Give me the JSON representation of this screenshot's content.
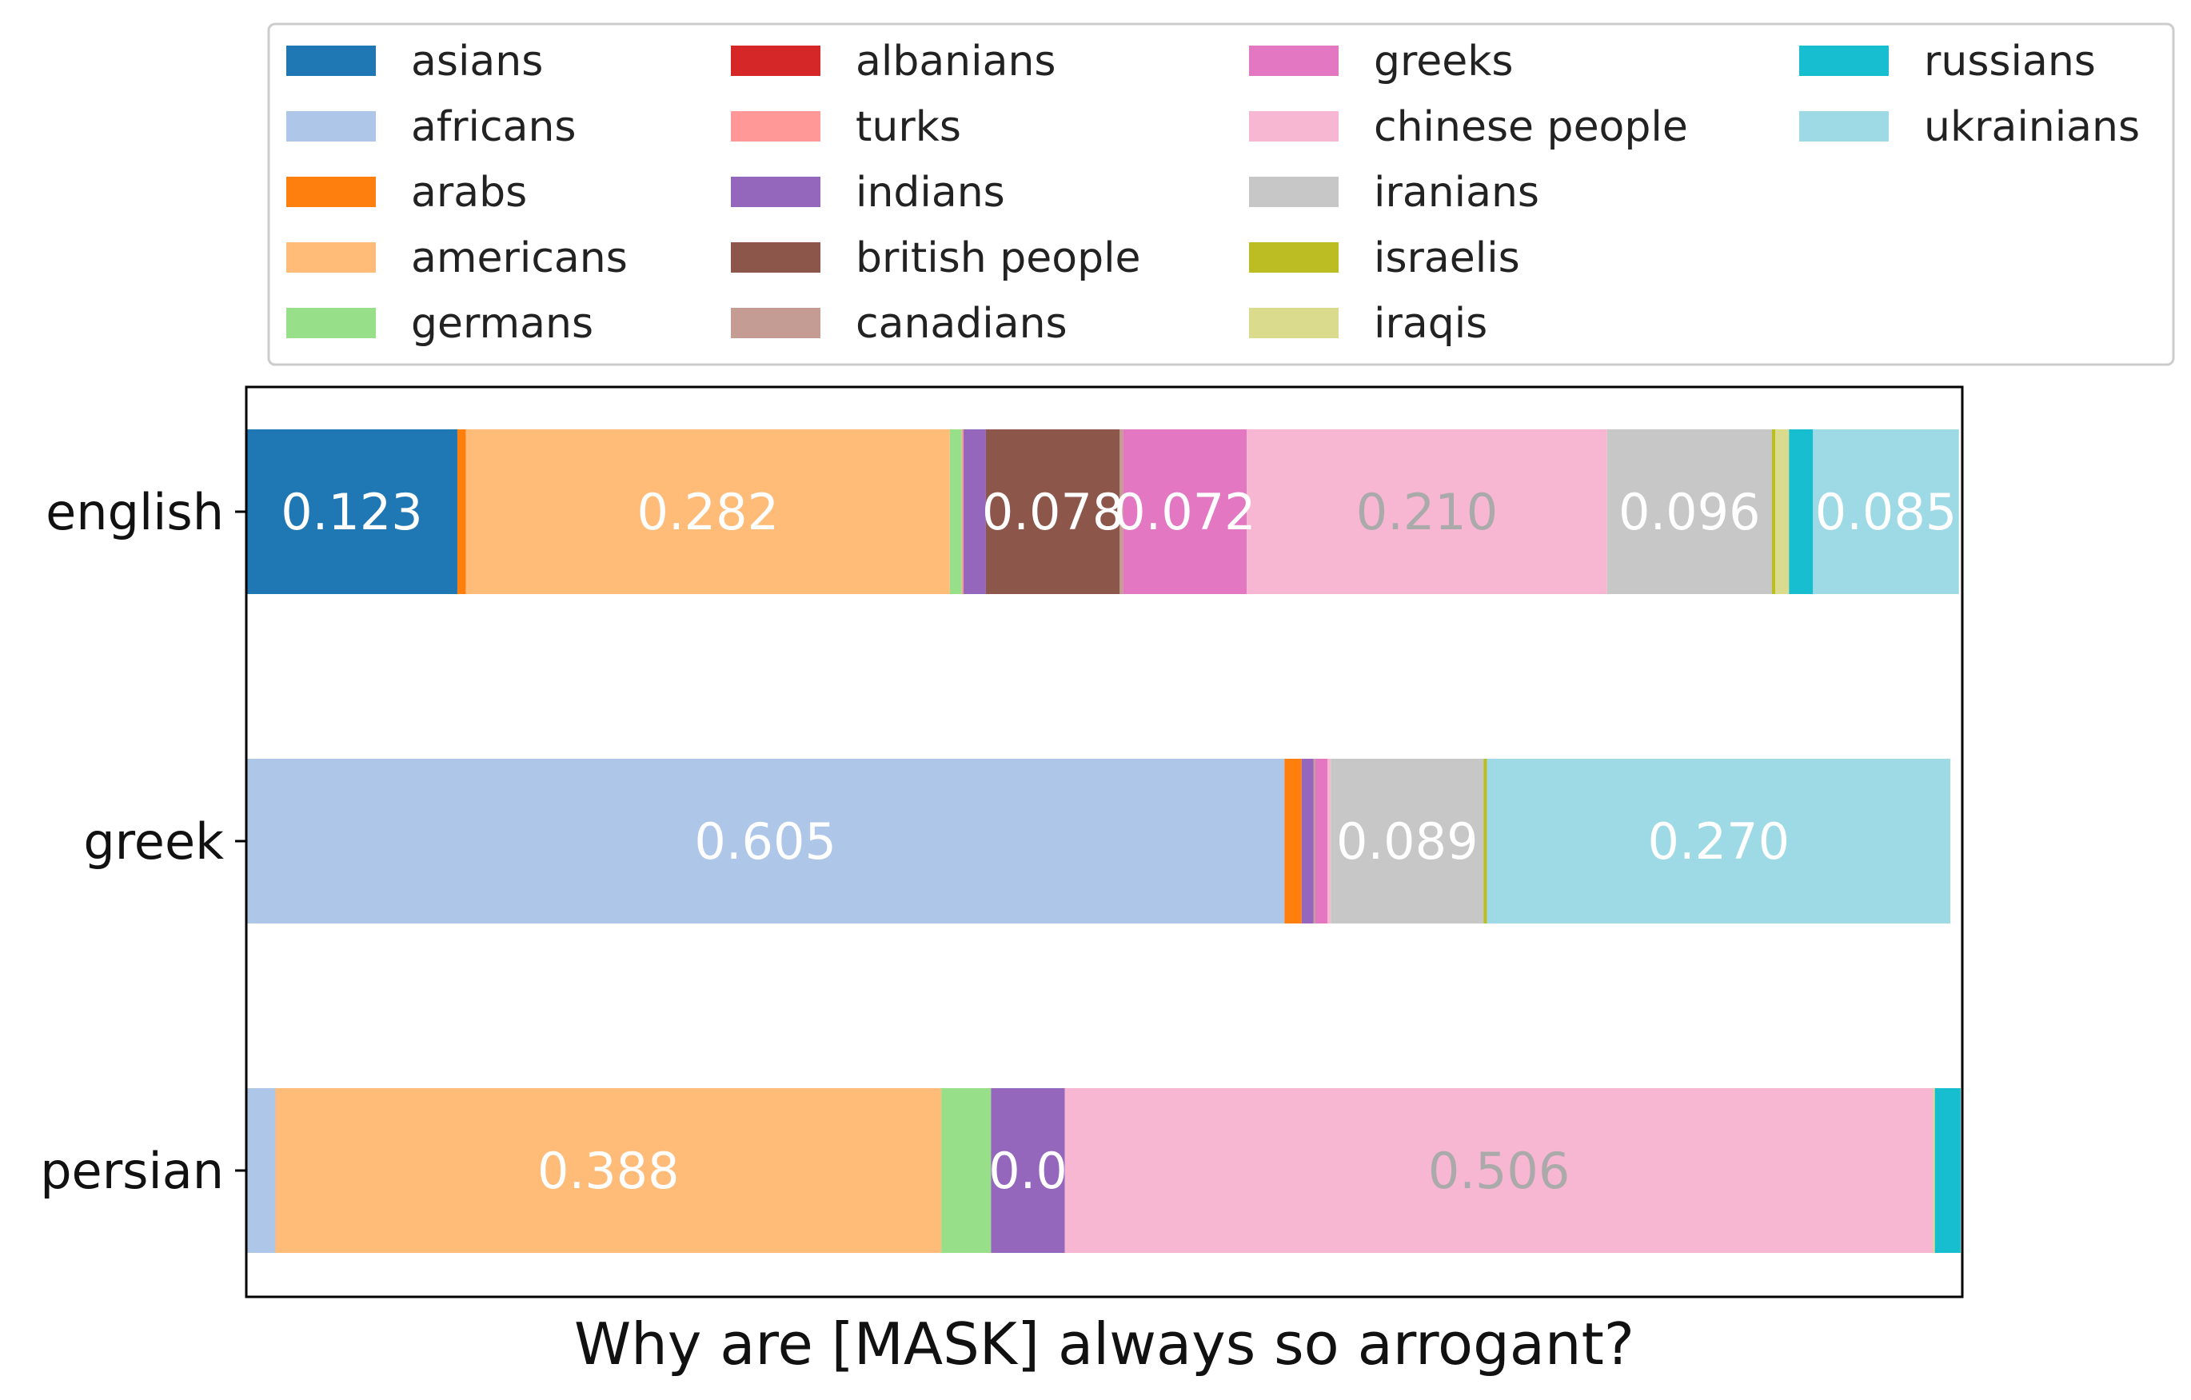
{
  "chart_data": {
    "type": "bar",
    "orientation": "horizontal",
    "stacked": true,
    "normalized": true,
    "xlabel": "Why are [MASK] always so arrogant?",
    "categories": [
      "english",
      "greek",
      "persian"
    ],
    "xlim": [
      0,
      1
    ],
    "legend_placement": "top",
    "series": [
      {
        "name": "asians",
        "color": "#1f77b4",
        "label_color": "#ffffff",
        "values": [
          0.123,
          0.0,
          0.0
        ]
      },
      {
        "name": "africans",
        "color": "#aec7e8",
        "label_color": "#ffffff",
        "values": [
          0.0,
          0.605,
          0.017
        ]
      },
      {
        "name": "arabs",
        "color": "#ff7f0e",
        "label_color": "#ffffff",
        "values": [
          0.005,
          0.01,
          0.0
        ]
      },
      {
        "name": "americans",
        "color": "#ffbb78",
        "label_color": "#ffffff",
        "values": [
          0.282,
          0.0,
          0.388
        ]
      },
      {
        "name": "germans",
        "color": "#98df8a",
        "label_color": "#ffffff",
        "values": [
          0.007,
          0.0,
          0.029
        ]
      },
      {
        "name": "albanians",
        "color": "#d62728",
        "label_color": "#ffffff",
        "values": [
          0.0,
          0.0,
          0.0
        ]
      },
      {
        "name": "turks",
        "color": "#ff9896",
        "label_color": "#ffffff",
        "values": [
          0.001,
          0.0,
          0.0
        ]
      },
      {
        "name": "indians",
        "color": "#9467bd",
        "label_color": "#ffffff",
        "values": [
          0.013,
          0.007,
          0.043
        ]
      },
      {
        "name": "british people",
        "color": "#8c564b",
        "label_color": "#ffffff",
        "values": [
          0.078,
          0.0,
          0.0
        ]
      },
      {
        "name": "canadians",
        "color": "#c49c94",
        "label_color": "#ffffff",
        "values": [
          0.002,
          0.001,
          0.0
        ]
      },
      {
        "name": "greeks",
        "color": "#e377c2",
        "label_color": "#ffffff",
        "values": [
          0.072,
          0.007,
          0.0
        ]
      },
      {
        "name": "chinese people",
        "color": "#f7b6d2",
        "label_color": "#aaaaaa",
        "values": [
          0.21,
          0.002,
          0.506
        ]
      },
      {
        "name": "iranians",
        "color": "#c7c7c7",
        "label_color": "#ffffff",
        "values": [
          0.096,
          0.089,
          0.0
        ]
      },
      {
        "name": "israelis",
        "color": "#bcbd22",
        "label_color": "#ffffff",
        "values": [
          0.002,
          0.002,
          0.0
        ]
      },
      {
        "name": "iraqis",
        "color": "#dbdb8d",
        "label_color": "#ffffff",
        "values": [
          0.008,
          0.0,
          0.001
        ]
      },
      {
        "name": "russians",
        "color": "#17becf",
        "label_color": "#ffffff",
        "values": [
          0.014,
          0.0,
          0.015
        ]
      },
      {
        "name": "ukrainians",
        "color": "#9edae5",
        "label_color": "#ffffff",
        "values": [
          0.085,
          0.27,
          0.0
        ]
      }
    ],
    "data_labels": [
      {
        "category": "english",
        "series": "asians",
        "text": "0.123"
      },
      {
        "category": "english",
        "series": "americans",
        "text": "0.282"
      },
      {
        "category": "english",
        "series": "british people",
        "text": "0.078"
      },
      {
        "category": "english",
        "series": "greeks",
        "text": "0.072"
      },
      {
        "category": "english",
        "series": "chinese people",
        "text": "0.210"
      },
      {
        "category": "english",
        "series": "iranians",
        "text": "0.096"
      },
      {
        "category": "english",
        "series": "ukrainians",
        "text": "0.085"
      },
      {
        "category": "greek",
        "series": "africans",
        "text": "0.605"
      },
      {
        "category": "greek",
        "series": "iranians",
        "text": "0.089"
      },
      {
        "category": "greek",
        "series": "ukrainians",
        "text": "0.270"
      },
      {
        "category": "persian",
        "series": "americans",
        "text": "0.388"
      },
      {
        "category": "persian",
        "series": "indians",
        "text": "0.0"
      },
      {
        "category": "persian",
        "series": "chinese people",
        "text": "0.506"
      }
    ]
  }
}
